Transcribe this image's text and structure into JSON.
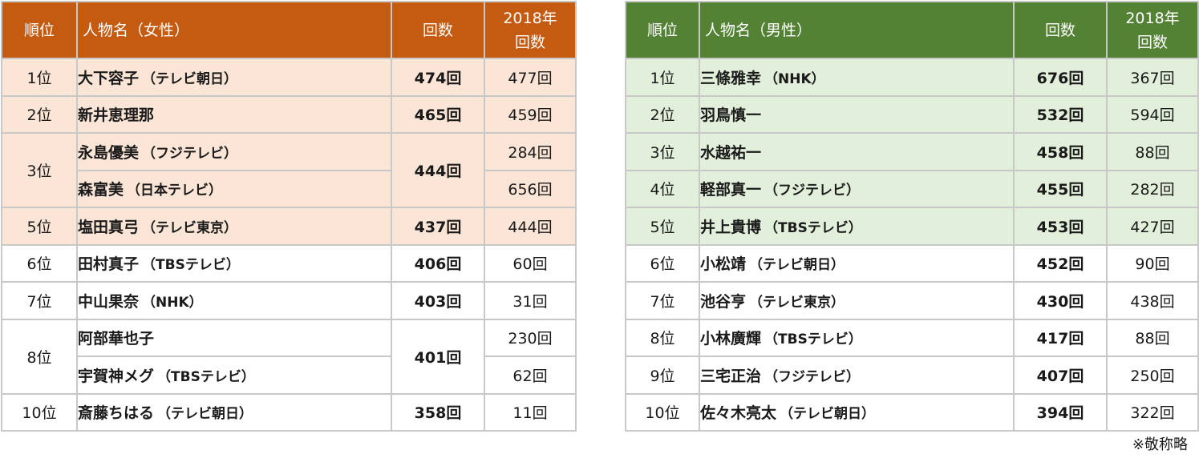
{
  "women": {
    "headers": {
      "rank": "順位",
      "name": "人物名（女性）",
      "count": "回数",
      "prev_line1": "2018年",
      "prev_line2": "回数"
    },
    "rows": [
      {
        "rank": "1位",
        "name": "大下容子",
        "aff": "（テレビ朝日）",
        "count": "474回",
        "prev": "477回"
      },
      {
        "rank": "2位",
        "name": "新井恵理那",
        "aff": "",
        "count": "465回",
        "prev": "459回"
      },
      {
        "rank": "3位",
        "name": "永島優美",
        "aff": "（フジテレビ）",
        "count": "444回",
        "prev": "284回"
      },
      {
        "rank": "",
        "name": "森富美",
        "aff": "（日本テレビ）",
        "count": "",
        "prev": "656回"
      },
      {
        "rank": "5位",
        "name": "塩田真弓",
        "aff": "（テレビ東京）",
        "count": "437回",
        "prev": "444回"
      },
      {
        "rank": "6位",
        "name": "田村真子",
        "aff": "（TBSテレビ）",
        "count": "406回",
        "prev": "60回"
      },
      {
        "rank": "7位",
        "name": "中山果奈",
        "aff": "（NHK）",
        "count": "403回",
        "prev": "31回"
      },
      {
        "rank": "8位",
        "name": "阿部華也子",
        "aff": "",
        "count": "401回",
        "prev": "230回"
      },
      {
        "rank": "",
        "name": "宇賀神メグ",
        "aff": "（TBSテレビ）",
        "count": "",
        "prev": "62回"
      },
      {
        "rank": "10位",
        "name": "斎藤ちはる",
        "aff": "（テレビ朝日）",
        "count": "358回",
        "prev": "11回"
      }
    ]
  },
  "men": {
    "headers": {
      "rank": "順位",
      "name": "人物名（男性）",
      "count": "回数",
      "prev_line1": "2018年",
      "prev_line2": "回数"
    },
    "rows": [
      {
        "rank": "1位",
        "name": "三條雅幸",
        "aff": "（NHK）",
        "count": "676回",
        "prev": "367回"
      },
      {
        "rank": "2位",
        "name": "羽鳥慎一",
        "aff": "",
        "count": "532回",
        "prev": "594回"
      },
      {
        "rank": "3位",
        "name": "水越祐一",
        "aff": "",
        "count": "458回",
        "prev": "88回"
      },
      {
        "rank": "4位",
        "name": "軽部真一",
        "aff": "（フジテレビ）",
        "count": "455回",
        "prev": "282回"
      },
      {
        "rank": "5位",
        "name": "井上貴博",
        "aff": "（TBSテレビ）",
        "count": "453回",
        "prev": "427回"
      },
      {
        "rank": "6位",
        "name": "小松靖",
        "aff": "（テレビ朝日）",
        "count": "452回",
        "prev": "90回"
      },
      {
        "rank": "7位",
        "name": "池谷亨",
        "aff": "（テレビ東京）",
        "count": "430回",
        "prev": "438回"
      },
      {
        "rank": "8位",
        "name": "小林廣輝",
        "aff": "（TBSテレビ）",
        "count": "417回",
        "prev": "88回"
      },
      {
        "rank": "9位",
        "name": "三宅正治",
        "aff": "（フジテレビ）",
        "count": "407回",
        "prev": "250回"
      },
      {
        "rank": "10位",
        "name": "佐々木亮太",
        "aff": "（テレビ朝日）",
        "count": "394回",
        "prev": "322回"
      }
    ]
  },
  "note": "※敬称略",
  "colors": {
    "women_header": "#c55a11",
    "women_highlight": "#fbe5d6",
    "men_header": "#548235",
    "men_highlight": "#e2efda",
    "border": "#c8c8c8"
  }
}
